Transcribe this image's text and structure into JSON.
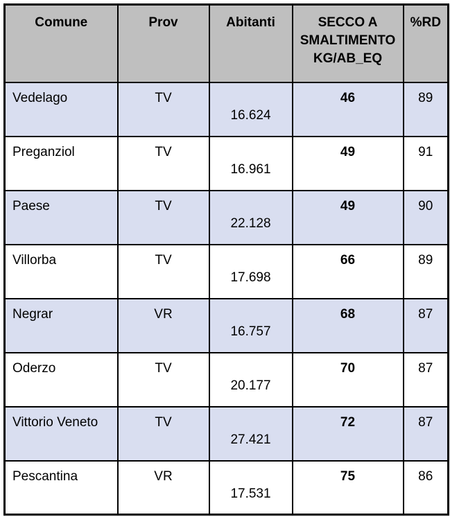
{
  "colors": {
    "header_bg": "#bfbfbf",
    "row_shaded_bg": "#d9def0",
    "row_plain_bg": "#ffffff",
    "border": "#000000",
    "text": "#000000"
  },
  "columns": [
    {
      "label": "Comune"
    },
    {
      "label": "Prov"
    },
    {
      "label": "Abitanti"
    },
    {
      "label": "SECCO A SMALTIMENTO KG/AB_EQ"
    },
    {
      "label": "%RD"
    }
  ],
  "rows": [
    {
      "comune": "Vedelago",
      "prov": "TV",
      "abitanti": "16.624",
      "secco": "46",
      "rd": "89"
    },
    {
      "comune": "Preganziol",
      "prov": "TV",
      "abitanti": "16.961",
      "secco": "49",
      "rd": "91"
    },
    {
      "comune": "Paese",
      "prov": "TV",
      "abitanti": "22.128",
      "secco": "49",
      "rd": "90"
    },
    {
      "comune": "Villorba",
      "prov": "TV",
      "abitanti": "17.698",
      "secco": "66",
      "rd": "89"
    },
    {
      "comune": "Negrar",
      "prov": "VR",
      "abitanti": "16.757",
      "secco": "68",
      "rd": "87"
    },
    {
      "comune": "Oderzo",
      "prov": "TV",
      "abitanti": "20.177",
      "secco": "70",
      "rd": "87"
    },
    {
      "comune": "Vittorio Veneto",
      "prov": "TV",
      "abitanti": "27.421",
      "secco": "72",
      "rd": "87"
    },
    {
      "comune": "Pescantina",
      "prov": "VR",
      "abitanti": "17.531",
      "secco": "75",
      "rd": "86"
    }
  ]
}
